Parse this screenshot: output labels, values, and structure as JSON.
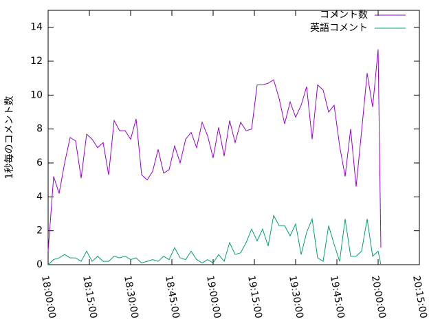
{
  "chart_data": {
    "type": "line",
    "y_label": "1秒毎のコメント数",
    "x": [
      "18:00:00",
      "18:02:00",
      "18:04:00",
      "18:06:00",
      "18:08:00",
      "18:10:00",
      "18:12:00",
      "18:14:00",
      "18:16:00",
      "18:18:00",
      "18:20:00",
      "18:22:00",
      "18:24:00",
      "18:26:00",
      "18:28:00",
      "18:30:00",
      "18:32:00",
      "18:34:00",
      "18:36:00",
      "18:38:00",
      "18:40:00",
      "18:42:00",
      "18:44:00",
      "18:46:00",
      "18:48:00",
      "18:50:00",
      "18:52:00",
      "18:54:00",
      "18:56:00",
      "18:58:00",
      "19:00:00",
      "19:02:00",
      "19:04:00",
      "19:06:00",
      "19:08:00",
      "19:10:00",
      "19:12:00",
      "19:14:00",
      "19:16:00",
      "19:18:00",
      "19:20:00",
      "19:22:00",
      "19:24:00",
      "19:26:00",
      "19:28:00",
      "19:30:00",
      "19:32:00",
      "19:34:00",
      "19:36:00",
      "19:38:00",
      "19:40:00",
      "19:42:00",
      "19:44:00",
      "19:46:00",
      "19:48:00",
      "19:50:00",
      "19:52:00",
      "19:54:00",
      "19:56:00",
      "19:58:00",
      "20:00:00",
      "20:01:00"
    ],
    "series": [
      {
        "name": "コメント数",
        "color": "#9400d3",
        "values": [
          0.8,
          5.2,
          4.2,
          6.0,
          7.5,
          7.3,
          5.1,
          7.7,
          7.4,
          6.9,
          7.2,
          5.3,
          8.5,
          7.9,
          7.9,
          7.4,
          8.6,
          5.3,
          5.0,
          5.5,
          6.8,
          5.4,
          5.6,
          7.0,
          6.0,
          7.4,
          7.8,
          6.9,
          8.4,
          7.6,
          6.3,
          8.1,
          6.4,
          8.5,
          7.2,
          8.4,
          7.9,
          8.0,
          10.6,
          10.6,
          10.7,
          10.9,
          9.8,
          8.3,
          9.6,
          8.7,
          9.4,
          10.5,
          7.4,
          10.6,
          10.3,
          9.0,
          9.4,
          7.0,
          5.2,
          8.0,
          4.6,
          7.9,
          11.3,
          9.3,
          12.7,
          1.0
        ]
      },
      {
        "name": "英語コメント",
        "color": "#009e73",
        "values": [
          0,
          0.3,
          0.4,
          0.6,
          0.4,
          0.4,
          0.2,
          0.8,
          0.2,
          0.5,
          0.2,
          0.2,
          0.5,
          0.4,
          0.5,
          0.3,
          0.4,
          0.1,
          0.2,
          0.3,
          0.2,
          0.5,
          0.3,
          1.0,
          0.4,
          0.3,
          0.8,
          0.3,
          0.1,
          0.3,
          0.1,
          0.6,
          0.2,
          1.3,
          0.6,
          0.7,
          1.3,
          2.1,
          1.4,
          2.1,
          1.1,
          2.9,
          2.3,
          2.3,
          1.7,
          2.4,
          0.6,
          1.9,
          2.7,
          0.4,
          0.2,
          2.3,
          1.2,
          0.2,
          2.7,
          0.5,
          0.5,
          0.8,
          2.7,
          0.5,
          0.8,
          0
        ]
      }
    ],
    "xlim": [
      "18:00:00",
      "20:15:00"
    ],
    "xticks": [
      "18:00:00",
      "18:15:00",
      "18:30:00",
      "18:45:00",
      "19:00:00",
      "19:15:00",
      "19:30:00",
      "19:45:00",
      "20:00:00",
      "20:15:00"
    ],
    "ylim": [
      0,
      15
    ],
    "yticks": [
      0,
      2,
      4,
      6,
      8,
      10,
      12,
      14
    ],
    "legend": "top-right"
  }
}
